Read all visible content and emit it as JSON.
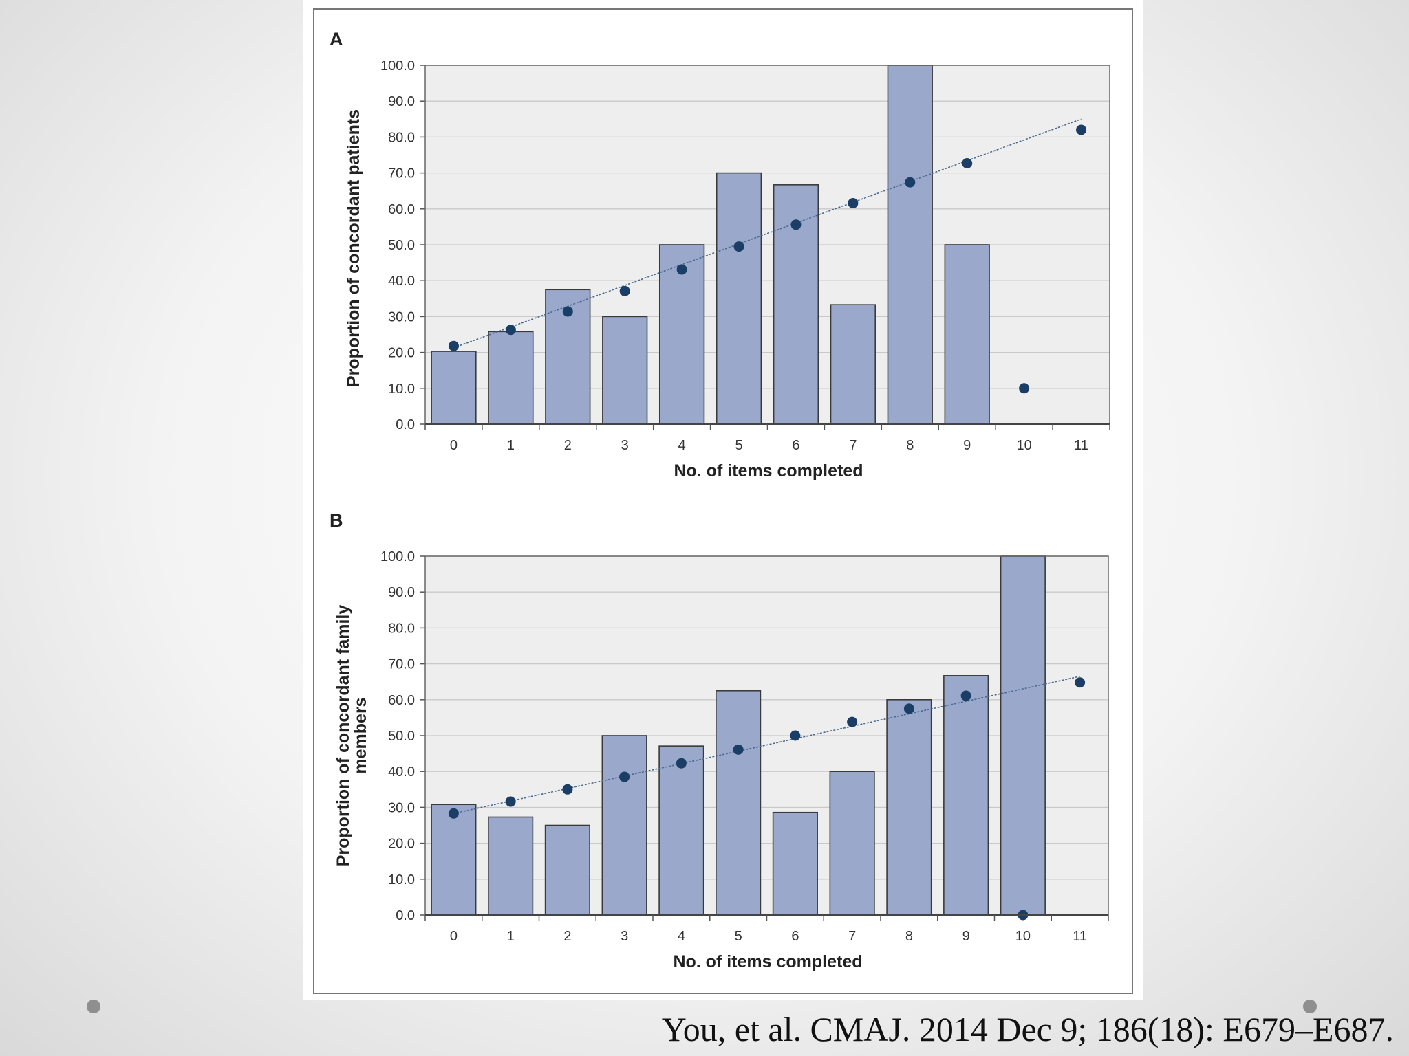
{
  "citation": "You, et al. CMAJ. 2014 Dec 9; 186(18): E679–E687.",
  "colors": {
    "bar_fill": "#9aa8cc",
    "bar_stroke": "#3a3a3a",
    "dot": "#1a3e66",
    "trend": "#4a6a8e",
    "plot_bg": "#eeeeee",
    "grid": "#c9c9c9"
  },
  "chart_data": [
    {
      "type": "bar",
      "panel_label": "A",
      "categories": [
        "0",
        "1",
        "2",
        "3",
        "4",
        "5",
        "6",
        "7",
        "8",
        "9",
        "10",
        "11"
      ],
      "series": [
        {
          "kind": "bar",
          "values": [
            20.3,
            25.8,
            37.5,
            30.0,
            50.0,
            70.0,
            66.7,
            33.3,
            100.0,
            50.0,
            0,
            0
          ]
        },
        {
          "kind": "scatter",
          "values": [
            21.8,
            26.3,
            31.4,
            37.1,
            43.1,
            49.5,
            55.6,
            61.6,
            67.4,
            72.7,
            10.0,
            82.0
          ]
        }
      ],
      "trendline": {
        "start": 21.3,
        "end": 85.0
      },
      "xlabel": "No. of items completed",
      "ylabel": "Proportion of concordant patients",
      "yticks": [
        "0.0",
        "10.0",
        "20.0",
        "30.0",
        "40.0",
        "50.0",
        "60.0",
        "70.0",
        "80.0",
        "90.0",
        "100.0"
      ],
      "ylim": [
        0,
        100
      ],
      "grid": true
    },
    {
      "type": "bar",
      "panel_label": "B",
      "categories": [
        "0",
        "1",
        "2",
        "3",
        "4",
        "5",
        "6",
        "7",
        "8",
        "9",
        "10",
        "11"
      ],
      "series": [
        {
          "kind": "bar",
          "values": [
            30.8,
            27.3,
            25.0,
            50.0,
            47.1,
            62.5,
            28.6,
            40.0,
            60.0,
            66.7,
            100.0,
            0
          ]
        },
        {
          "kind": "scatter",
          "values": [
            28.3,
            31.6,
            35.0,
            38.5,
            42.3,
            46.1,
            50.0,
            53.8,
            57.5,
            61.1,
            0.0,
            64.8
          ]
        }
      ],
      "trendline": {
        "start": 28.3,
        "end": 66.5
      },
      "xlabel": "No. of items completed",
      "ylabel_lines": [
        "Proportion of concordant family",
        "members"
      ],
      "yticks": [
        "0.0",
        "10.0",
        "20.0",
        "30.0",
        "40.0",
        "50.0",
        "60.0",
        "70.0",
        "80.0",
        "90.0",
        "100.0"
      ],
      "ylim": [
        0,
        100
      ],
      "grid": true
    }
  ]
}
